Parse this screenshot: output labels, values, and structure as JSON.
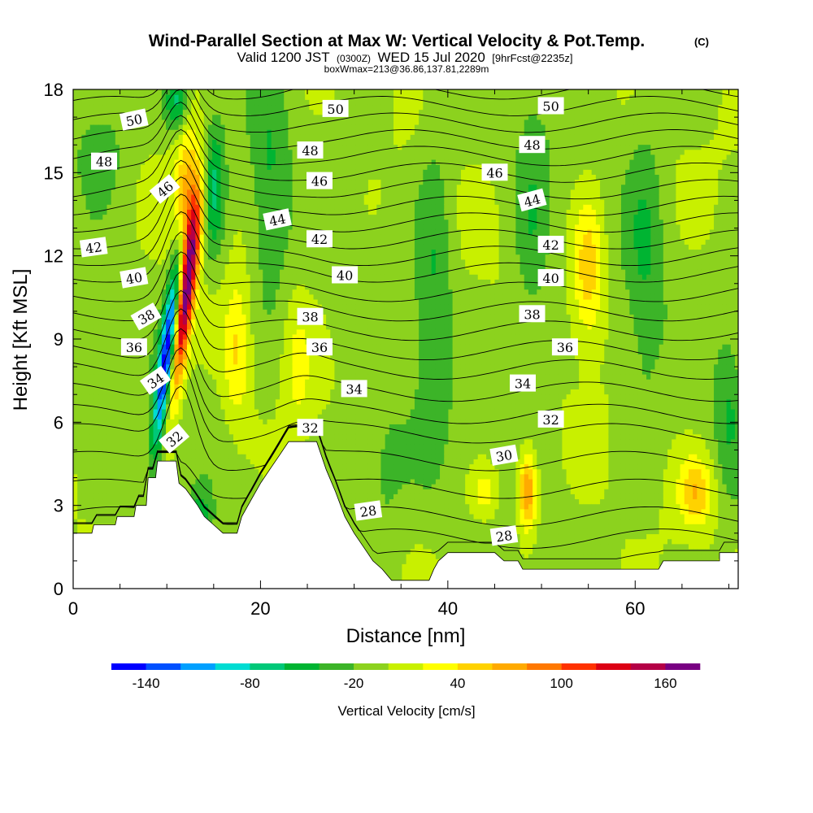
{
  "header": {
    "title": "Wind-Parallel Section at Max W: Vertical Velocity & Pot.Temp.",
    "copyright_mark": "(C)",
    "valid_prefix": "Valid 1200 JST",
    "valid_utc": "(0300Z)",
    "valid_date": "WED 15 Jul 2020",
    "forecast_note": "[9hrFcst@2235z]",
    "box_info": "boxWmax=213@36.86,137.81,2289m"
  },
  "chart_data": {
    "type": "heatmap",
    "title": "Wind-Parallel Section at Max W: Vertical Velocity & Pot.Temp.",
    "xlabel": "Distance [nm]",
    "ylabel": "Height [Kft MSL]",
    "xlim": [
      0,
      71
    ],
    "ylim": [
      0,
      18
    ],
    "x_ticks": [
      0,
      20,
      40,
      60
    ],
    "y_ticks": [
      0,
      3,
      6,
      9,
      12,
      15,
      18
    ],
    "colorbar": {
      "label": "Vertical Velocity [cm/s]",
      "levels": [
        -160,
        -140,
        -120,
        -100,
        -80,
        -60,
        -40,
        -20,
        0,
        20,
        40,
        60,
        80,
        100,
        120,
        140,
        160,
        180
      ],
      "colors": [
        "#0000ff",
        "#0050ff",
        "#00a0ff",
        "#00dcd2",
        "#00c878",
        "#00b432",
        "#3cb428",
        "#8cd21e",
        "#c8f000",
        "#ffff00",
        "#ffd200",
        "#ffaa00",
        "#ff7800",
        "#ff3200",
        "#dc0014",
        "#b40046",
        "#780082"
      ],
      "tick_labels": [
        "-140",
        "-80",
        "-20",
        "40",
        "100",
        "160"
      ],
      "tick_values": [
        -140,
        -80,
        -20,
        40,
        100,
        160
      ]
    },
    "updrafts": [
      {
        "x": 12.0,
        "z": 10.5,
        "w": 170,
        "sx": 0.9,
        "sz": 3.5
      },
      {
        "x": 12.3,
        "z": 14.0,
        "w": 80,
        "sx": 1.3,
        "sz": 2.5
      },
      {
        "x": 17.5,
        "z": 8.5,
        "w": 45,
        "sx": 1.4,
        "sz": 2.5
      },
      {
        "x": 55.0,
        "z": 11.5,
        "w": 60,
        "sx": 1.6,
        "sz": 2.5
      },
      {
        "x": 48.5,
        "z": 3.5,
        "w": 95,
        "sx": 1.0,
        "sz": 1.4
      },
      {
        "x": 66.5,
        "z": 3.5,
        "w": 60,
        "sx": 1.8,
        "sz": 1.2
      },
      {
        "x": 44.0,
        "z": 3.5,
        "w": 35,
        "sx": 1.5,
        "sz": 0.9
      },
      {
        "x": 24.0,
        "z": 8.0,
        "w": 25,
        "sx": 1.5,
        "sz": 2.5
      }
    ],
    "downdrafts": [
      {
        "x": 10.0,
        "z": 8.5,
        "w": -150,
        "sx": 0.8,
        "sz": 3.5
      },
      {
        "x": 15.0,
        "z": 14.5,
        "w": -60,
        "sx": 1.2,
        "sz": 2.5
      },
      {
        "x": 11.0,
        "z": 17.5,
        "w": -60,
        "sx": 1.2,
        "sz": 1.0
      },
      {
        "x": 13.5,
        "z": 2.5,
        "w": -50,
        "sx": 1.2,
        "sz": 0.9
      },
      {
        "x": 21.0,
        "z": 14.0,
        "w": -35,
        "sx": 2.0,
        "sz": 4.5
      },
      {
        "x": 38.5,
        "z": 11.0,
        "w": -35,
        "sx": 2.0,
        "sz": 6.0
      },
      {
        "x": 49.0,
        "z": 13.0,
        "w": -30,
        "sx": 2.0,
        "sz": 5.0
      },
      {
        "x": 61.0,
        "z": 12.0,
        "w": -30,
        "sx": 2.0,
        "sz": 6.0
      },
      {
        "x": 3.0,
        "z": 16.0,
        "w": -30,
        "sx": 3.0,
        "sz": 2.0
      },
      {
        "x": 33.0,
        "z": 4.0,
        "w": -25,
        "sx": 3.0,
        "sz": 3.0
      },
      {
        "x": 70.0,
        "z": 6.5,
        "w": -30,
        "sx": 1.5,
        "sz": 3.0
      }
    ],
    "terrain": [
      {
        "x": 0,
        "z": 2.0
      },
      {
        "x": 2.0,
        "z": 2.0
      },
      {
        "x": 2.2,
        "z": 2.3
      },
      {
        "x": 4.5,
        "z": 2.3
      },
      {
        "x": 4.7,
        "z": 2.6
      },
      {
        "x": 6.5,
        "z": 2.6
      },
      {
        "x": 6.7,
        "z": 3.0
      },
      {
        "x": 7.8,
        "z": 3.0
      },
      {
        "x": 8.0,
        "z": 4.0
      },
      {
        "x": 8.8,
        "z": 4.0
      },
      {
        "x": 9.0,
        "z": 4.6
      },
      {
        "x": 11.0,
        "z": 4.6
      },
      {
        "x": 11.3,
        "z": 3.8
      },
      {
        "x": 12.0,
        "z": 3.6
      },
      {
        "x": 13.3,
        "z": 3.0
      },
      {
        "x": 14.0,
        "z": 2.6
      },
      {
        "x": 15.0,
        "z": 2.3
      },
      {
        "x": 16.0,
        "z": 2.0
      },
      {
        "x": 17.5,
        "z": 2.0
      },
      {
        "x": 18.0,
        "z": 2.6
      },
      {
        "x": 19.0,
        "z": 3.2
      },
      {
        "x": 20.0,
        "z": 3.8
      },
      {
        "x": 21.0,
        "z": 4.3
      },
      {
        "x": 22.0,
        "z": 4.8
      },
      {
        "x": 23.0,
        "z": 5.3
      },
      {
        "x": 26.0,
        "z": 5.3
      },
      {
        "x": 26.5,
        "z": 4.8
      },
      {
        "x": 27.0,
        "z": 4.3
      },
      {
        "x": 28.0,
        "z": 3.5
      },
      {
        "x": 29.0,
        "z": 2.6
      },
      {
        "x": 30.0,
        "z": 2.0
      },
      {
        "x": 31.0,
        "z": 1.5
      },
      {
        "x": 32.0,
        "z": 1.0
      },
      {
        "x": 33.0,
        "z": 0.7
      },
      {
        "x": 34.0,
        "z": 0.3
      },
      {
        "x": 38.0,
        "z": 0.3
      },
      {
        "x": 38.5,
        "z": 0.7
      },
      {
        "x": 39.0,
        "z": 1.0
      },
      {
        "x": 40.0,
        "z": 1.3
      },
      {
        "x": 45.0,
        "z": 1.3
      },
      {
        "x": 46.0,
        "z": 1.0
      },
      {
        "x": 47.5,
        "z": 1.0
      },
      {
        "x": 48.0,
        "z": 0.7
      },
      {
        "x": 62.5,
        "z": 0.7
      },
      {
        "x": 63.0,
        "z": 1.0
      },
      {
        "x": 69.0,
        "z": 1.0
      },
      {
        "x": 69.0,
        "z": 1.3
      },
      {
        "x": 71.0,
        "z": 1.3
      }
    ],
    "theta_contours": {
      "levels": [
        27,
        28,
        29,
        30,
        31,
        32,
        33,
        34,
        35,
        36,
        37,
        38,
        39,
        40,
        41,
        42,
        43,
        44,
        45,
        46,
        47,
        48,
        49,
        50,
        51,
        52
      ],
      "base_height_kft": [
        1.0,
        1.8,
        2.6,
        3.6,
        4.6,
        5.6,
        6.3,
        7.1,
        7.9,
        8.6,
        9.3,
        10.0,
        10.7,
        11.4,
        12.0,
        12.6,
        13.2,
        13.8,
        14.4,
        15.0,
        15.6,
        16.2,
        16.8,
        17.4,
        18.0,
        18.6
      ]
    },
    "contour_labels": [
      {
        "text": "50",
        "x": 6.5,
        "z": 16.9,
        "rot": -12
      },
      {
        "text": "48",
        "x": 3.3,
        "z": 15.4,
        "rot": 0
      },
      {
        "text": "46",
        "x": 9.8,
        "z": 14.4,
        "rot": -40
      },
      {
        "text": "42",
        "x": 2.2,
        "z": 12.3,
        "rot": -8
      },
      {
        "text": "40",
        "x": 6.5,
        "z": 11.2,
        "rot": -10
      },
      {
        "text": "38",
        "x": 7.8,
        "z": 9.8,
        "rot": -30
      },
      {
        "text": "36",
        "x": 6.5,
        "z": 8.7,
        "rot": 0
      },
      {
        "text": "34",
        "x": 8.8,
        "z": 7.5,
        "rot": -35
      },
      {
        "text": "32",
        "x": 10.8,
        "z": 5.4,
        "rot": -40
      },
      {
        "text": "50",
        "x": 28.0,
        "z": 17.3,
        "rot": 0
      },
      {
        "text": "48",
        "x": 25.3,
        "z": 15.8,
        "rot": 0
      },
      {
        "text": "46",
        "x": 26.3,
        "z": 14.7,
        "rot": 0
      },
      {
        "text": "44",
        "x": 21.8,
        "z": 13.3,
        "rot": -12
      },
      {
        "text": "42",
        "x": 26.3,
        "z": 12.6,
        "rot": 0
      },
      {
        "text": "40",
        "x": 29.0,
        "z": 11.3,
        "rot": 0
      },
      {
        "text": "38",
        "x": 25.3,
        "z": 9.8,
        "rot": 0
      },
      {
        "text": "36",
        "x": 26.3,
        "z": 8.7,
        "rot": 0
      },
      {
        "text": "34",
        "x": 30.0,
        "z": 7.2,
        "rot": 0
      },
      {
        "text": "32",
        "x": 25.3,
        "z": 5.8,
        "rot": 0
      },
      {
        "text": "28",
        "x": 31.5,
        "z": 2.8,
        "rot": -8
      },
      {
        "text": "50",
        "x": 51.0,
        "z": 17.4,
        "rot": 0
      },
      {
        "text": "48",
        "x": 49.0,
        "z": 16.0,
        "rot": 0
      },
      {
        "text": "46",
        "x": 45.0,
        "z": 15.0,
        "rot": 0
      },
      {
        "text": "44",
        "x": 49.0,
        "z": 14.0,
        "rot": -15
      },
      {
        "text": "42",
        "x": 51.0,
        "z": 12.4,
        "rot": 0
      },
      {
        "text": "40",
        "x": 51.0,
        "z": 11.2,
        "rot": 0
      },
      {
        "text": "38",
        "x": 49.0,
        "z": 9.9,
        "rot": 0
      },
      {
        "text": "36",
        "x": 52.5,
        "z": 8.7,
        "rot": 0
      },
      {
        "text": "34",
        "x": 48.0,
        "z": 7.4,
        "rot": 0
      },
      {
        "text": "32",
        "x": 51.0,
        "z": 6.1,
        "rot": 0
      },
      {
        "text": "30",
        "x": 46.0,
        "z": 4.8,
        "rot": -10
      },
      {
        "text": "28",
        "x": 46.0,
        "z": 1.9,
        "rot": -8
      }
    ]
  }
}
